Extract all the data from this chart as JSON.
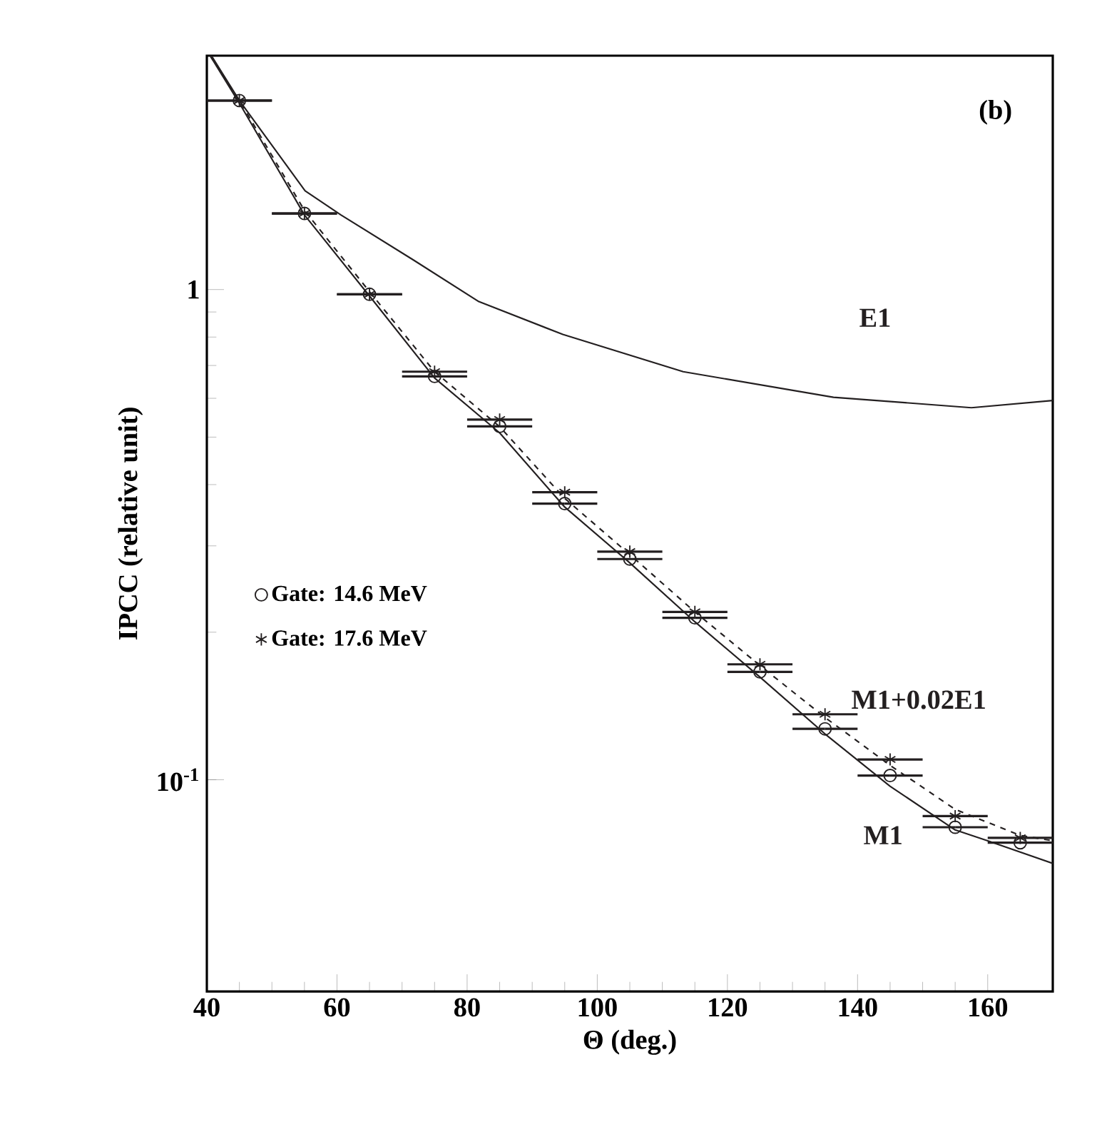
{
  "chart_data": {
    "type": "scatter",
    "xlabel": "Θ (deg.)",
    "ylabel": "IPCC (relative unit)",
    "annotations": [
      "(b)"
    ],
    "xlim": [
      40,
      170
    ],
    "ylim": [
      0.037,
      3.0
    ],
    "log": "y",
    "xticks": [
      40,
      60,
      80,
      100,
      120,
      140,
      160
    ],
    "yticks": [
      {
        "value": 0.1,
        "label": "10$^{-1}$"
      },
      1
    ],
    "legend": "left",
    "grid": false,
    "series": [
      {
        "name": "Gate: 14.6 MeV",
        "marker": "circle",
        "color": "#231f20",
        "x": [
          45,
          55,
          65,
          75,
          85,
          95,
          105,
          115,
          125,
          135,
          145,
          155,
          165
        ],
        "values": [
          2.43,
          1.43,
          0.978,
          0.665,
          0.526,
          0.366,
          0.282,
          0.214,
          0.166,
          0.127,
          0.102,
          0.08,
          0.0744
        ],
        "xerrors": [
          5,
          5,
          5,
          5,
          5,
          5,
          5,
          5,
          5,
          5,
          5,
          5,
          5
        ]
      },
      {
        "name": "Gate: 17.6 MeV",
        "marker": "cross",
        "color": "#231f20",
        "x": [
          45,
          55,
          65,
          75,
          85,
          95,
          105,
          115,
          125,
          135,
          145,
          155,
          165
        ],
        "values": [
          2.43,
          1.43,
          0.978,
          0.68,
          0.543,
          0.386,
          0.292,
          0.22,
          0.172,
          0.136,
          0.11,
          0.0843,
          0.0761
        ],
        "xerrors": [
          5,
          5,
          5,
          5,
          5,
          5,
          5,
          5,
          5,
          5,
          5,
          5,
          5
        ]
      },
      {
        "name": "E1",
        "type": "line",
        "line_style": "solid",
        "color": "#231f20",
        "x": [
          40.7,
          45,
          55.1,
          60.6,
          71.7,
          81.8,
          94.7,
          113.2,
          136.3,
          157.5,
          170
        ],
        "values": [
          3.0,
          2.43,
          1.59,
          1.42,
          1.15,
          0.945,
          0.81,
          0.68,
          0.603,
          0.574,
          0.594
        ]
      },
      {
        "name": "M1+0.02E1",
        "type": "line",
        "line_style": "dashed",
        "color": "#231f20",
        "x": [
          40.5,
          45,
          55,
          65,
          75,
          85,
          95,
          105,
          115,
          125,
          135,
          145,
          155,
          165,
          170
        ],
        "values": [
          3.0,
          2.43,
          1.45,
          0.99,
          0.68,
          0.525,
          0.375,
          0.288,
          0.22,
          0.171,
          0.134,
          0.107,
          0.087,
          0.077,
          0.0751
        ]
      },
      {
        "name": "M1",
        "type": "line",
        "line_style": "solid",
        "color": "#231f20",
        "x": [
          40.5,
          45,
          55,
          65,
          75,
          85,
          95,
          105,
          115,
          125,
          135,
          145,
          155,
          160,
          170
        ],
        "values": [
          3.0,
          2.4,
          1.42,
          0.97,
          0.66,
          0.51,
          0.36,
          0.277,
          0.21,
          0.162,
          0.124,
          0.097,
          0.079,
          0.0751,
          0.0675
        ]
      }
    ]
  }
}
